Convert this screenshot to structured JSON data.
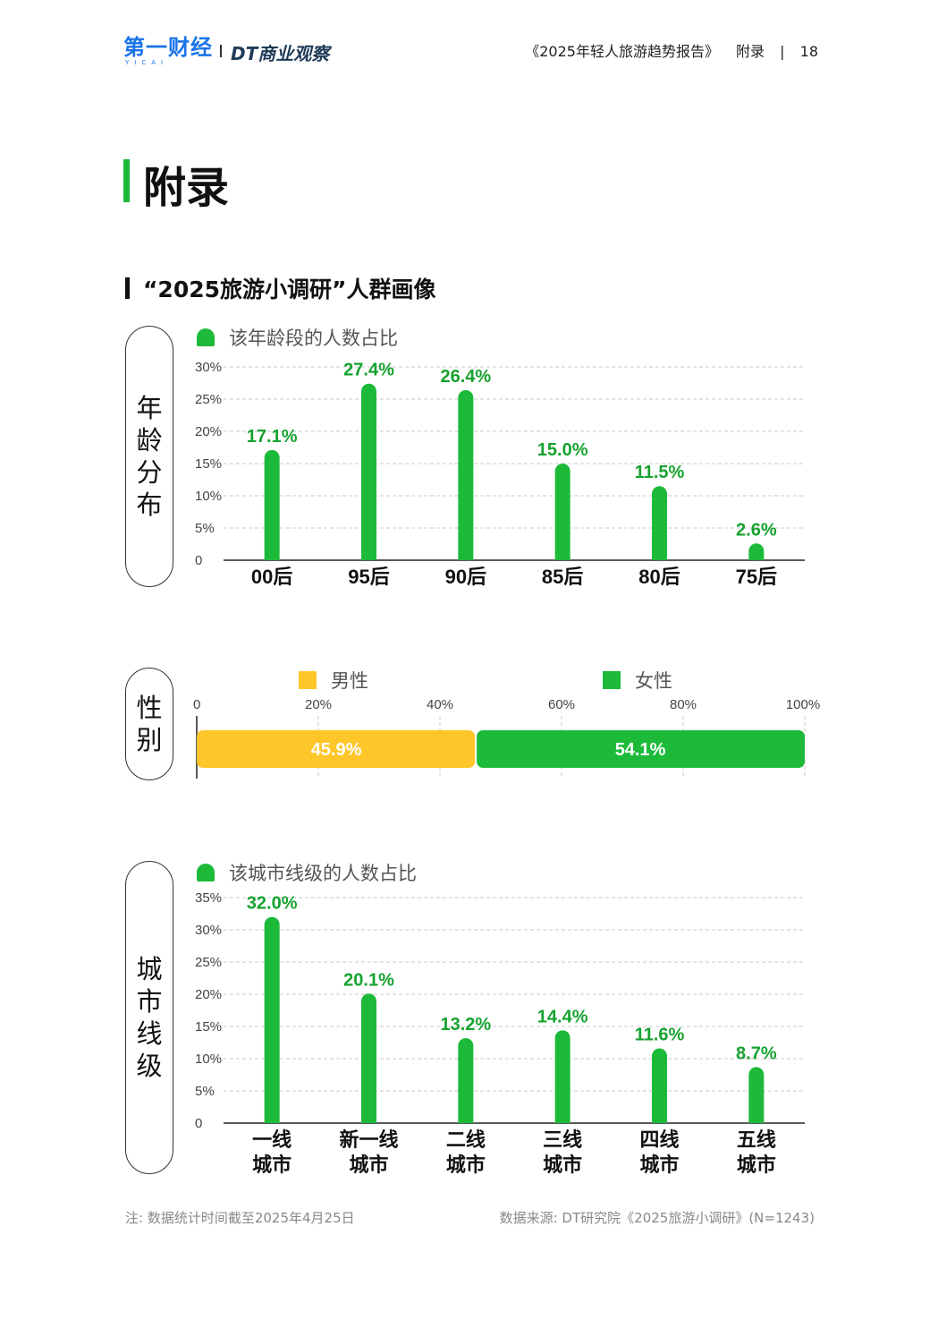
{
  "header": {
    "logo_yicai": "第一财经",
    "logo_yicai_sub": "YICAI",
    "logo_dt": "DT商业观察",
    "report_title": "《2025年轻人旅游趋势报告》",
    "section": "附录",
    "page_number": "18"
  },
  "page_title": "附录",
  "subtitle": "“2025旅游小调研”人群画像",
  "age": {
    "side_label": [
      "年",
      "龄",
      "分",
      "布"
    ],
    "legend": "该年龄段的人数占比"
  },
  "gender": {
    "side_label": [
      "性",
      "别"
    ]
  },
  "city": {
    "side_label": [
      "城",
      "市",
      "线",
      "级"
    ],
    "legend": "该城市线级的人数占比"
  },
  "colors": {
    "green": "#1dba3a",
    "green_text": "#16a22f",
    "yellow": "#ffc629",
    "grid": "#c8c8c8"
  },
  "chart_data": [
    {
      "type": "bar",
      "categories": [
        "00后",
        "95后",
        "90后",
        "85后",
        "80后",
        "75后"
      ],
      "series": [
        {
          "name": "该年龄段的人数占比",
          "values": [
            17.1,
            27.4,
            26.4,
            15.0,
            11.5,
            2.6
          ]
        }
      ],
      "value_labels": [
        "17.1%",
        "27.4%",
        "26.4%",
        "15.0%",
        "11.5%",
        "2.6%"
      ],
      "yticks": [
        "0",
        "5%",
        "10%",
        "15%",
        "20%",
        "25%",
        "30%"
      ],
      "ylim": [
        0,
        30
      ],
      "grid": true
    },
    {
      "type": "bar",
      "orientation": "horizontal-stacked",
      "series": [
        {
          "name": "男性",
          "values": [
            45.9
          ],
          "label": "45.9%"
        },
        {
          "name": "女性",
          "values": [
            54.1
          ],
          "label": "54.1%"
        }
      ],
      "xticks": [
        "0",
        "20%",
        "40%",
        "60%",
        "80%",
        "100%"
      ],
      "xlim": [
        0,
        100
      ],
      "grid": true
    },
    {
      "type": "bar",
      "categories": [
        "一线\n城市",
        "新一线\n城市",
        "二线\n城市",
        "三线\n城市",
        "四线\n城市",
        "五线\n城市"
      ],
      "series": [
        {
          "name": "该城市线级的人数占比",
          "values": [
            32.0,
            20.1,
            13.2,
            14.4,
            11.6,
            8.7
          ]
        }
      ],
      "value_labels": [
        "32.0%",
        "20.1%",
        "13.2%",
        "14.4%",
        "11.6%",
        "8.7%"
      ],
      "yticks": [
        "0",
        "5%",
        "10%",
        "15%",
        "20%",
        "25%",
        "30%",
        "35%"
      ],
      "ylim": [
        0,
        35
      ],
      "grid": true
    }
  ],
  "footer": {
    "note": "注: 数据统计时间截至2025年4月25日",
    "source": "数据来源: DT研究院《2025旅游小调研》(N=1243)"
  }
}
